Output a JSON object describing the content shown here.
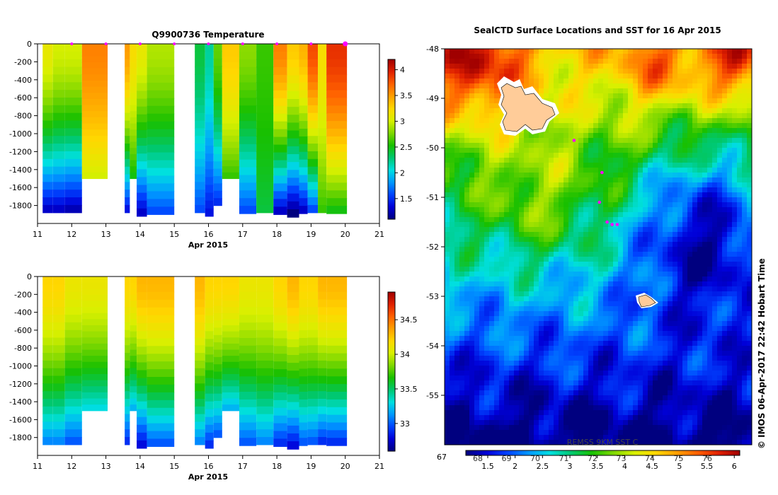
{
  "colors": {
    "scale": [
      "#00007f",
      "#0000d8",
      "#0044ff",
      "#0099ff",
      "#00e0e0",
      "#00c870",
      "#18c000",
      "#7fd800",
      "#d8f000",
      "#ffd800",
      "#ffa000",
      "#ff6000",
      "#e02000",
      "#a00000"
    ]
  },
  "chart_data": [
    {
      "type": "heatmap",
      "title": "Q9900736  Temperature",
      "xlabel": "Apr 2015",
      "ylabel": "",
      "xlim": [
        11,
        21
      ],
      "ylim": [
        -2000,
        0
      ],
      "x_ticks": [
        "11",
        "12",
        "13",
        "14",
        "15",
        "16",
        "17",
        "18",
        "19",
        "20",
        "21"
      ],
      "y_ticks": [
        "0",
        "-200",
        "-400",
        "-600",
        "-800",
        "-1000",
        "-1200",
        "-1400",
        "-1600",
        "-1800"
      ],
      "colorbar": {
        "min": 1.1,
        "max": 4.2,
        "ticks": [
          "1.5",
          "2",
          "2.5",
          "3",
          "3.5",
          "4"
        ]
      },
      "profile_markers_x": [
        12,
        13,
        14,
        15,
        16,
        17,
        18,
        19,
        20
      ],
      "profiles": [
        {
          "x0": 11.15,
          "x1": 11.45,
          "depth": 1880,
          "surf": 3.1,
          "deep": 1.3
        },
        {
          "x0": 11.45,
          "x1": 11.8,
          "depth": 1880,
          "surf": 3.0,
          "deep": 1.3
        },
        {
          "x0": 11.8,
          "x1": 12.3,
          "depth": 1880,
          "surf": 3.0,
          "deep": 1.25
        },
        {
          "x0": 12.3,
          "x1": 13.05,
          "depth": 1500,
          "surf": 3.6,
          "deep": 3.0
        },
        {
          "x0": 13.55,
          "x1": 13.7,
          "depth": 1880,
          "surf": 3.5,
          "deep": 1.4
        },
        {
          "x0": 13.7,
          "x1": 13.9,
          "depth": 1500,
          "surf": 3.2,
          "deep": 2.5
        },
        {
          "x0": 13.9,
          "x1": 14.2,
          "depth": 1920,
          "surf": 3.1,
          "deep": 1.3
        },
        {
          "x0": 14.2,
          "x1": 15.0,
          "depth": 1900,
          "surf": 2.9,
          "deep": 1.6
        },
        {
          "x0": 15.6,
          "x1": 15.9,
          "depth": 1880,
          "surf": 2.4,
          "deep": 1.6
        },
        {
          "x0": 15.9,
          "x1": 16.15,
          "depth": 1920,
          "surf": 2.2,
          "deep": 1.4
        },
        {
          "x0": 16.15,
          "x1": 16.4,
          "depth": 1800,
          "surf": 2.7,
          "deep": 1.5
        },
        {
          "x0": 16.4,
          "x1": 16.9,
          "depth": 1500,
          "surf": 3.3,
          "deep": 2.6
        },
        {
          "x0": 16.9,
          "x1": 17.4,
          "depth": 1890,
          "surf": 2.8,
          "deep": 1.6
        },
        {
          "x0": 17.4,
          "x1": 17.9,
          "depth": 1880,
          "surf": 2.6,
          "deep": 2.4
        },
        {
          "x0": 17.9,
          "x1": 18.3,
          "depth": 1900,
          "surf": 3.6,
          "deep": 1.3
        },
        {
          "x0": 18.3,
          "x1": 18.65,
          "depth": 1930,
          "surf": 3.3,
          "deep": 1.1
        },
        {
          "x0": 18.65,
          "x1": 18.9,
          "depth": 1890,
          "surf": 3.4,
          "deep": 1.3
        },
        {
          "x0": 18.9,
          "x1": 19.2,
          "depth": 1880,
          "surf": 3.8,
          "deep": 1.6
        },
        {
          "x0": 19.2,
          "x1": 19.45,
          "depth": 1880,
          "surf": 3.2,
          "deep": 2.6
        },
        {
          "x0": 19.45,
          "x1": 20.05,
          "depth": 1890,
          "surf": 3.9,
          "deep": 2.5
        }
      ]
    },
    {
      "type": "heatmap",
      "title": "",
      "xlabel": "Apr 2015",
      "ylabel": "",
      "xlim": [
        11,
        21
      ],
      "ylim": [
        -2000,
        0
      ],
      "x_ticks": [
        "11",
        "12",
        "13",
        "14",
        "15",
        "16",
        "17",
        "18",
        "19",
        "20",
        "21"
      ],
      "y_ticks": [
        "0",
        "-200",
        "-400",
        "-600",
        "-800",
        "-1000",
        "-1200",
        "-1400",
        "-1600",
        "-1800"
      ],
      "colorbar": {
        "min": 32.6,
        "max": 34.9,
        "ticks": [
          "33",
          "33.5",
          "34",
          "34.5"
        ]
      },
      "profiles": [
        {
          "x0": 11.15,
          "x1": 11.45,
          "depth": 1880,
          "surf": 34.2,
          "deep": 33.1
        },
        {
          "x0": 11.45,
          "x1": 11.8,
          "depth": 1880,
          "surf": 34.2,
          "deep": 33.1
        },
        {
          "x0": 11.8,
          "x1": 12.3,
          "depth": 1880,
          "surf": 34.1,
          "deep": 33.0
        },
        {
          "x0": 12.3,
          "x1": 13.05,
          "depth": 1500,
          "surf": 34.1,
          "deep": 33.3
        },
        {
          "x0": 13.55,
          "x1": 13.7,
          "depth": 1880,
          "surf": 34.2,
          "deep": 32.9
        },
        {
          "x0": 13.7,
          "x1": 13.9,
          "depth": 1500,
          "surf": 34.2,
          "deep": 33.2
        },
        {
          "x0": 13.9,
          "x1": 14.2,
          "depth": 1920,
          "surf": 34.3,
          "deep": 32.8
        },
        {
          "x0": 14.2,
          "x1": 15.0,
          "depth": 1900,
          "surf": 34.3,
          "deep": 33.0
        },
        {
          "x0": 15.6,
          "x1": 15.9,
          "depth": 1880,
          "surf": 34.3,
          "deep": 33.1
        },
        {
          "x0": 15.9,
          "x1": 16.15,
          "depth": 1920,
          "surf": 34.2,
          "deep": 32.9
        },
        {
          "x0": 16.15,
          "x1": 16.4,
          "depth": 1800,
          "surf": 34.2,
          "deep": 33.0
        },
        {
          "x0": 16.4,
          "x1": 16.9,
          "depth": 1500,
          "surf": 34.2,
          "deep": 33.2
        },
        {
          "x0": 16.9,
          "x1": 17.4,
          "depth": 1890,
          "surf": 34.1,
          "deep": 33.0
        },
        {
          "x0": 17.4,
          "x1": 17.9,
          "depth": 1880,
          "surf": 34.1,
          "deep": 33.1
        },
        {
          "x0": 17.9,
          "x1": 18.3,
          "depth": 1900,
          "surf": 34.2,
          "deep": 32.9
        },
        {
          "x0": 18.3,
          "x1": 18.65,
          "depth": 1930,
          "surf": 34.3,
          "deep": 32.8
        },
        {
          "x0": 18.65,
          "x1": 18.9,
          "depth": 1890,
          "surf": 34.2,
          "deep": 33.0
        },
        {
          "x0": 18.9,
          "x1": 19.2,
          "depth": 1880,
          "surf": 34.2,
          "deep": 33.0
        },
        {
          "x0": 19.2,
          "x1": 19.45,
          "depth": 1880,
          "surf": 34.3,
          "deep": 32.9
        },
        {
          "x0": 19.45,
          "x1": 20.05,
          "depth": 1890,
          "surf": 34.3,
          "deep": 32.9
        }
      ]
    },
    {
      "type": "heatmap",
      "title": "SealCTD Surface Locations and SST for 16 Apr 2015",
      "ylim": [
        -56,
        -48
      ],
      "y_ticks": [
        "-48",
        "-49",
        "-50",
        "-51",
        "-52",
        "-53",
        "-54",
        "-55"
      ],
      "x_axis_ticks": [
        "67",
        "68",
        "69",
        "70",
        "71",
        "72",
        "73",
        "74",
        "75",
        "76"
      ],
      "colorbar": {
        "min": 1.1,
        "max": 6.1,
        "ticks": [
          "1.5",
          "2",
          "2.5",
          "3",
          "3.5",
          "4",
          "4.5",
          "5",
          "5.5",
          "6"
        ],
        "label": "REMSS 9KM SST C"
      },
      "legend": "bottom",
      "seal_locations": [
        {
          "lon": 69.55,
          "lat": -49.85
        },
        {
          "lon": 70.1,
          "lat": -50.5
        },
        {
          "lon": 70.05,
          "lat": -51.1
        },
        {
          "lon": 70.2,
          "lat": -51.5
        },
        {
          "lon": 70.3,
          "lat": -51.55
        },
        {
          "lon": 70.4,
          "lat": -51.55
        }
      ],
      "credit": "© IMOS 06-Apr-2017 22:42 Hobart Time"
    }
  ]
}
